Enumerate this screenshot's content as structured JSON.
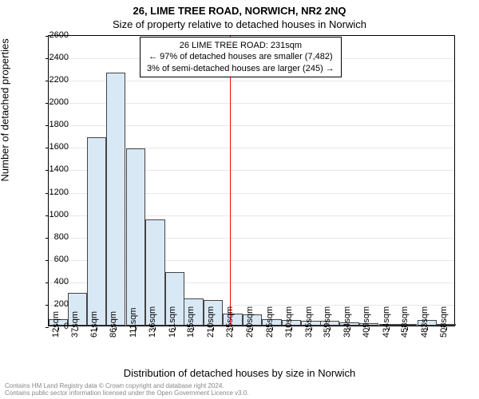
{
  "title": "26, LIME TREE ROAD, NORWICH, NR2 2NQ",
  "subtitle": "Size of property relative to detached houses in Norwich",
  "annotation": {
    "line1": "26 LIME TREE ROAD: 231sqm",
    "line2": "← 97% of detached houses are smaller (7,482)",
    "line3": "3% of semi-detached houses are larger (245) →"
  },
  "ylabel": "Number of detached properties",
  "xlabel": "Distribution of detached houses by size in Norwich",
  "footer1": "Contains HM Land Registry data © Crown copyright and database right 2024.",
  "footer2": "Contains public sector information licensed under the Open Government Licence v3.0.",
  "chart": {
    "type": "histogram",
    "ylim": [
      0,
      2600
    ],
    "ytick_step": 200,
    "bar_fill": "#d9e8f5",
    "bar_border": "#444444",
    "grid_color": "#e8e8e8",
    "background": "#ffffff",
    "marker_value": 231,
    "marker_color": "#ff0000",
    "x_labels": [
      "12sqm",
      "37sqm",
      "61sqm",
      "86sqm",
      "111sqm",
      "136sqm",
      "161sqm",
      "185sqm",
      "210sqm",
      "235sqm",
      "260sqm",
      "285sqm",
      "310sqm",
      "335sqm",
      "359sqm",
      "384sqm",
      "409sqm",
      "434sqm",
      "458sqm",
      "483sqm",
      "508sqm"
    ],
    "x_centers": [
      12,
      37,
      61,
      86,
      111,
      136,
      161,
      185,
      210,
      235,
      260,
      285,
      310,
      335,
      359,
      384,
      409,
      434,
      458,
      483,
      508
    ],
    "x_range": [
      0,
      520
    ],
    "bar_width_data": 24.75,
    "values": [
      55,
      290,
      1680,
      2260,
      1580,
      950,
      480,
      240,
      225,
      110,
      100,
      60,
      50,
      40,
      45,
      30,
      20,
      15,
      10,
      50,
      10
    ]
  }
}
